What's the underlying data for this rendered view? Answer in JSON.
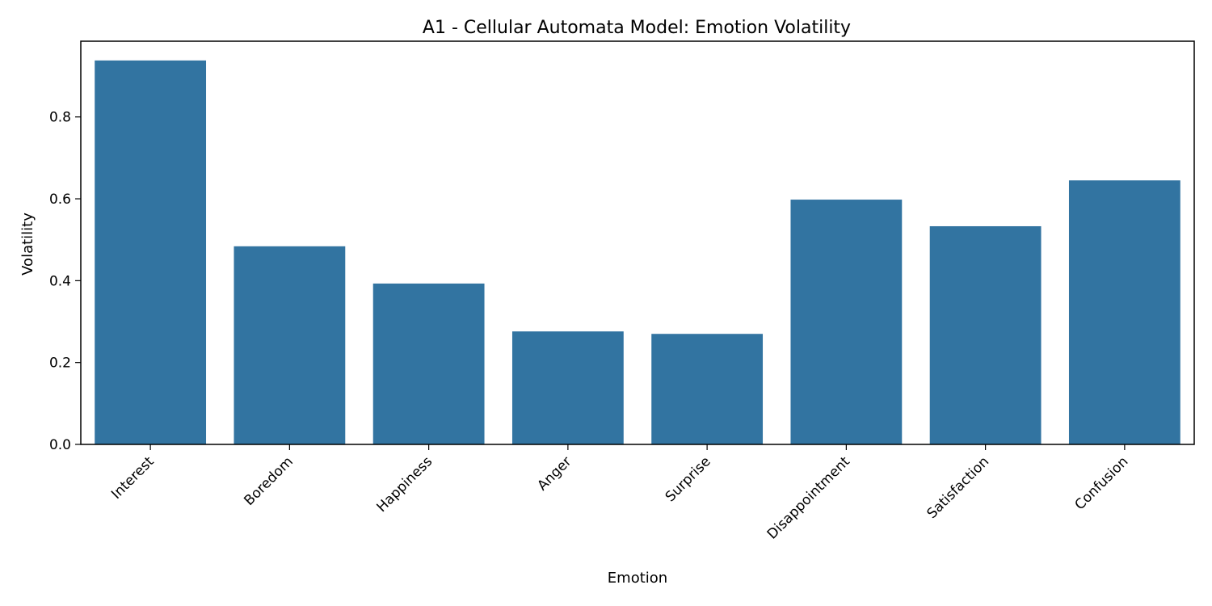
{
  "chart_data": {
    "type": "bar",
    "title": "A1 - Cellular Automata Model: Emotion Volatility",
    "xlabel": "Emotion",
    "ylabel": "Volatility",
    "categories": [
      "Interest",
      "Boredom",
      "Happiness",
      "Anger",
      "Surprise",
      "Disappointment",
      "Satisfaction",
      "Confusion"
    ],
    "values": [
      0.938,
      0.484,
      0.393,
      0.276,
      0.27,
      0.598,
      0.533,
      0.645
    ],
    "ylim": [
      0,
      0.985
    ],
    "yticks": [
      0.0,
      0.2,
      0.4,
      0.6,
      0.8
    ],
    "ytick_labels": [
      "0.0",
      "0.2",
      "0.4",
      "0.6",
      "0.8"
    ],
    "bar_color": "#3274a1",
    "grid": false,
    "legend": "none"
  }
}
